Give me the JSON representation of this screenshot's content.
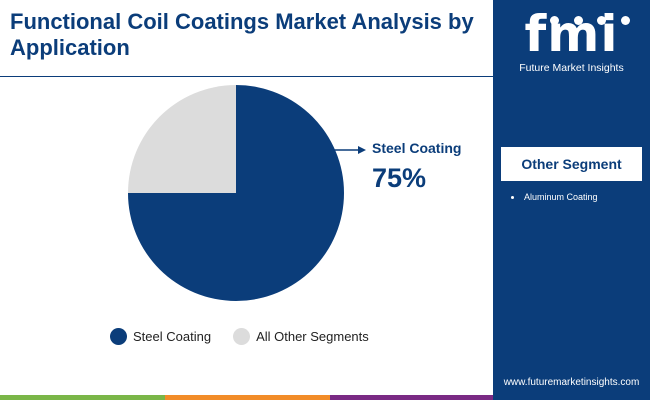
{
  "header": {
    "title": "Functional Coil Coatings Market Analysis by Application"
  },
  "chart_data": {
    "type": "pie",
    "slices": [
      {
        "label": "Steel Coating",
        "value": 75,
        "color": "#0b3d7a"
      },
      {
        "label": "All Other Segments",
        "value": 25,
        "color": "#dcdcdc"
      }
    ],
    "legend": [
      "Steel Coating",
      "All Other Segments"
    ],
    "legend_position": "bottom",
    "callout": {
      "label": "Steel Coating",
      "value": "75%"
    }
  },
  "sidebar": {
    "logo_mark": "fmi",
    "logo_text": "Future Market Insights",
    "segment_title": "Other Segment",
    "segments": [
      "Aluminum Coating"
    ],
    "website": "www.futuremarketinsights.com"
  },
  "colors": {
    "brand": "#0b3d7a",
    "other": "#dcdcdc",
    "bar_green": "#7ab648",
    "bar_orange": "#f28c28",
    "bar_purple": "#7a2a84"
  }
}
